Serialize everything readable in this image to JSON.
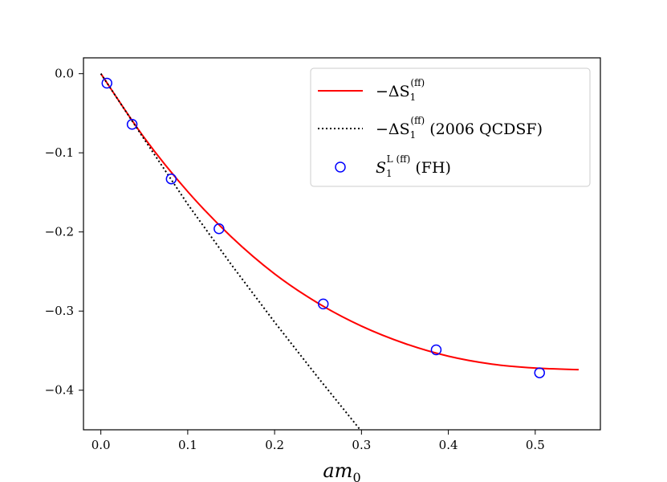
{
  "chart_data": {
    "type": "line",
    "xlabel": "am0",
    "ylabel": "",
    "xlim": [
      -0.02,
      0.575
    ],
    "ylim": [
      -0.45,
      0.02
    ],
    "grid": false,
    "legend_position": "top-right",
    "x_ticks": [
      0.0,
      0.1,
      0.2,
      0.3,
      0.4,
      0.5
    ],
    "x_tick_labels": [
      "0.0",
      "0.1",
      "0.2",
      "0.3",
      "0.4",
      "0.5"
    ],
    "y_ticks": [
      0.0,
      -0.1,
      -0.2,
      -0.3,
      -0.4
    ],
    "y_tick_labels": [
      "0.0",
      "−0.1",
      "−0.2",
      "−0.3",
      "−0.4"
    ],
    "series": [
      {
        "name": "−ΔS1(ff)",
        "style": "solid-line",
        "color": "#ff0000",
        "x": [
          0.0,
          0.05,
          0.1,
          0.15,
          0.2,
          0.25,
          0.3,
          0.35,
          0.4,
          0.45,
          0.5,
          0.55
        ],
        "y": [
          0.0,
          -0.081,
          -0.149,
          -0.206,
          -0.253,
          -0.29,
          -0.319,
          -0.341,
          -0.357,
          -0.367,
          -0.372,
          -0.374
        ]
      },
      {
        "name": "−ΔS1(ff) (2006 QCDSF)",
        "style": "dotted-line",
        "color": "#000000",
        "x": [
          0.0,
          0.05,
          0.1,
          0.15,
          0.2,
          0.25,
          0.3
        ],
        "y": [
          0.0,
          -0.083,
          -0.165,
          -0.241,
          -0.314,
          -0.384,
          -0.452
        ]
      },
      {
        "name": "S1L(ff) (FH)",
        "style": "open-circle-markers",
        "color": "#0000ff",
        "x": [
          0.007,
          0.036,
          0.081,
          0.136,
          0.256,
          0.386,
          0.505
        ],
        "y": [
          -0.012,
          -0.064,
          -0.133,
          -0.196,
          -0.291,
          -0.349,
          -0.378
        ]
      }
    ],
    "legend": [
      {
        "prefix": "−ΔS",
        "sub": "1",
        "sup": "(ff)",
        "suffix": ""
      },
      {
        "prefix": "−ΔS",
        "sub": "1",
        "sup": "(ff)",
        "suffix": " (2006 QCDSF)"
      },
      {
        "prefix": "S",
        "sub": "1",
        "sup": "L (ff)",
        "suffix": " (FH)"
      }
    ],
    "axis_label_parts": {
      "main": "am",
      "sub": "0"
    }
  }
}
